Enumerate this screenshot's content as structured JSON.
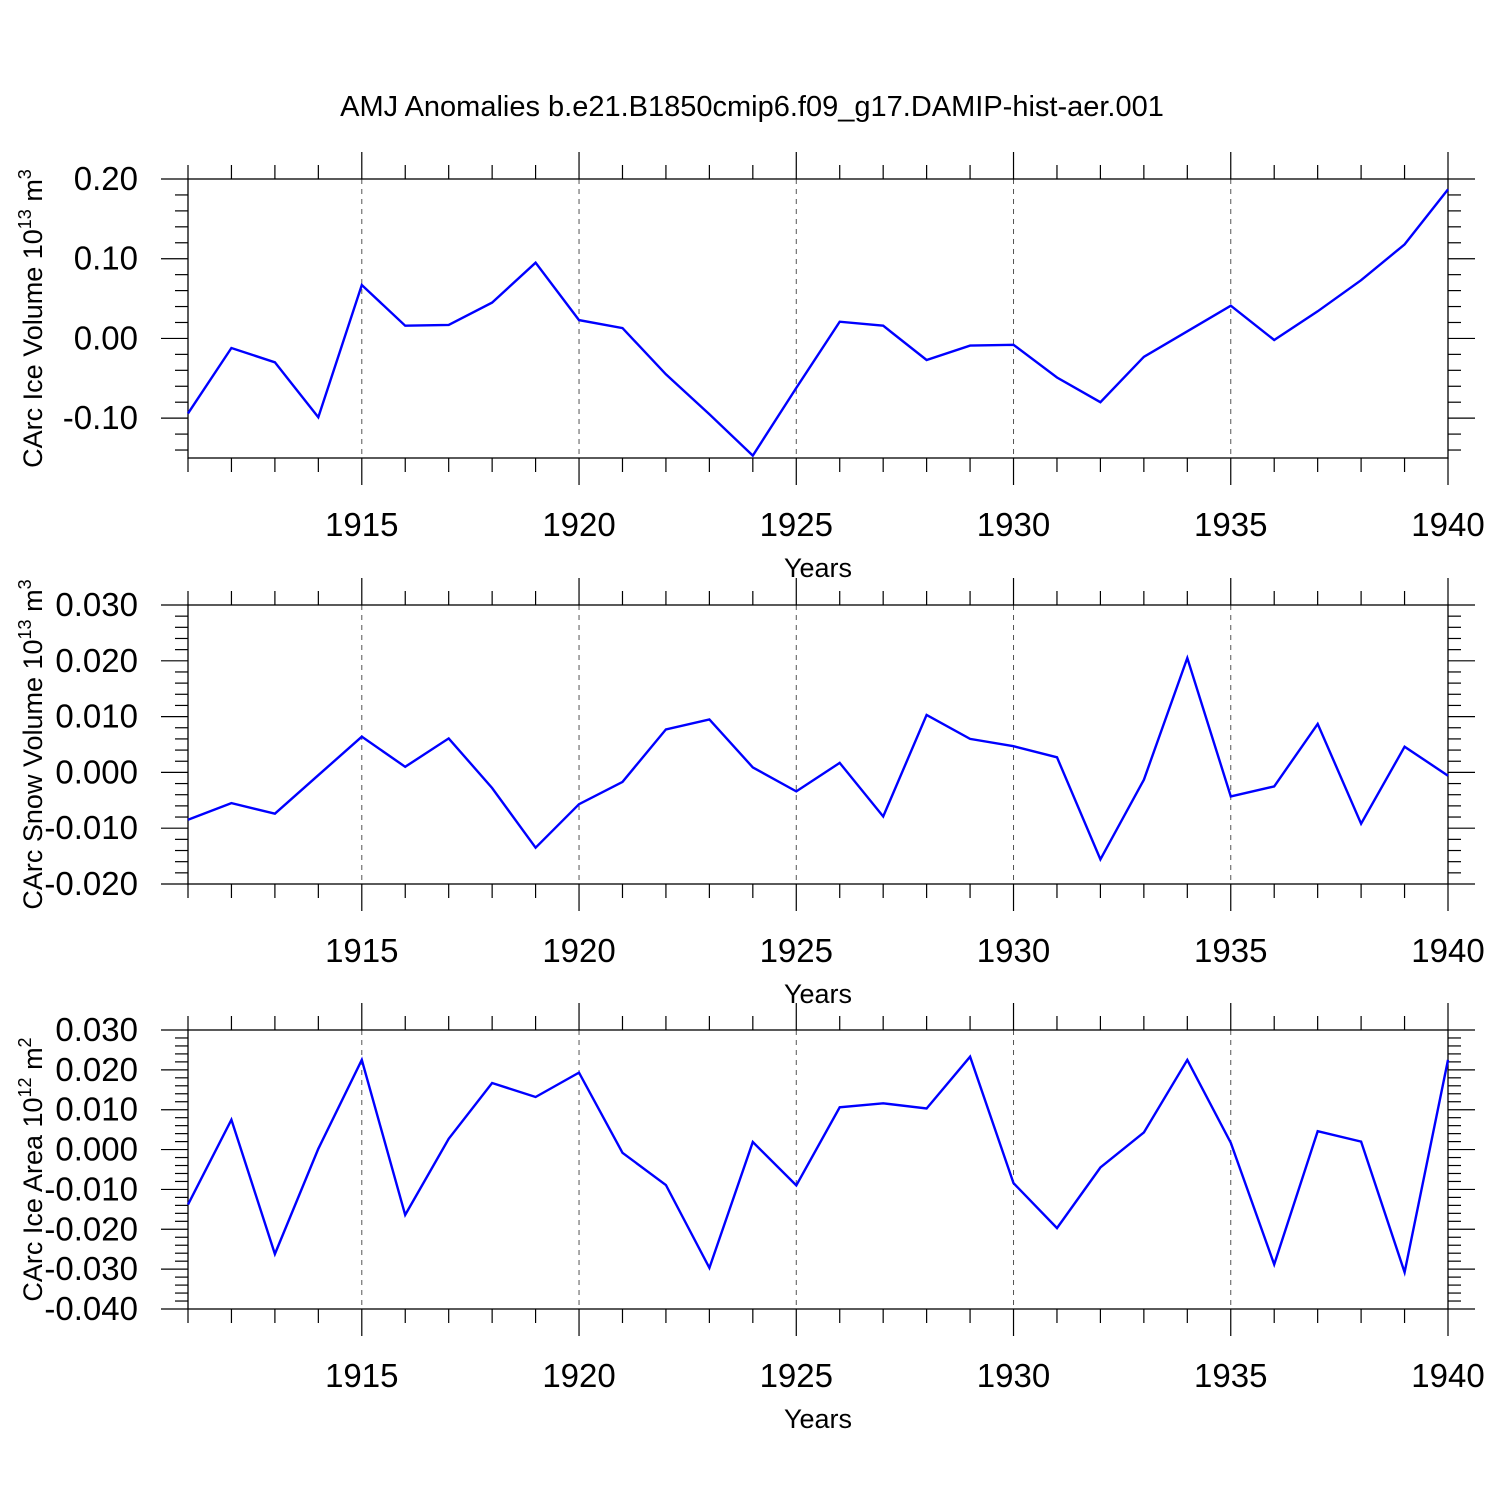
{
  "title": "AMJ Anomalies b.e21.B1850cmip6.f09_g17.DAMIP-hist-aer.001",
  "colors": {
    "line": "#0000ff",
    "axis": "#000000",
    "grid": "#555555"
  },
  "chart_data": [
    {
      "type": "line",
      "ylabel": {
        "main": "CArc Ice Volume 10",
        "exp": "13",
        "unit": " m",
        "unit_exp": "3"
      },
      "xlabel": "Years",
      "xlim": [
        1911,
        1940
      ],
      "ylim": [
        -0.15,
        0.2
      ],
      "xticks": [
        "1915",
        "1920",
        "1925",
        "1930",
        "1935",
        "1940"
      ],
      "yticks": [
        "0.20",
        "0.10",
        "0.00",
        "-0.10"
      ],
      "grid": "dashed vertical at major x ticks",
      "x": [
        1911,
        1912,
        1913,
        1914,
        1915,
        1916,
        1917,
        1918,
        1919,
        1920,
        1921,
        1922,
        1923,
        1924,
        1925,
        1926,
        1927,
        1928,
        1929,
        1930,
        1931,
        1932,
        1933,
        1934,
        1935,
        1936,
        1937,
        1938,
        1939,
        1940
      ],
      "values": [
        -0.094,
        -0.012,
        -0.03,
        -0.099,
        0.067,
        0.016,
        0.017,
        0.045,
        0.095,
        0.023,
        0.013,
        -0.045,
        -0.095,
        -0.147,
        -0.062,
        0.021,
        0.016,
        -0.027,
        -0.009,
        -0.008,
        -0.049,
        -0.08,
        -0.023,
        0.009,
        0.041,
        -0.002,
        0.034,
        0.073,
        0.118,
        0.187
      ]
    },
    {
      "type": "line",
      "ylabel": {
        "main": "CArc Snow Volume 10",
        "exp": "13",
        "unit": " m",
        "unit_exp": "3"
      },
      "xlabel": "Years",
      "xlim": [
        1911,
        1940
      ],
      "ylim": [
        -0.02,
        0.03
      ],
      "xticks": [
        "1915",
        "1920",
        "1925",
        "1930",
        "1935",
        "1940"
      ],
      "yticks": [
        "0.030",
        "0.020",
        "0.010",
        "0.000",
        "-0.010",
        "-0.020"
      ],
      "grid": "dashed vertical at major x ticks",
      "x": [
        1911,
        1912,
        1913,
        1914,
        1915,
        1916,
        1917,
        1918,
        1919,
        1920,
        1921,
        1922,
        1923,
        1924,
        1925,
        1926,
        1927,
        1928,
        1929,
        1930,
        1931,
        1932,
        1933,
        1934,
        1935,
        1936,
        1937,
        1938,
        1939,
        1940
      ],
      "values": [
        -0.0085,
        -0.0055,
        -0.0074,
        -0.0005,
        0.0064,
        0.001,
        0.0061,
        -0.0028,
        -0.0135,
        -0.0057,
        -0.0017,
        0.0077,
        0.0095,
        0.0009,
        -0.0034,
        0.0017,
        -0.0079,
        0.0103,
        0.006,
        0.0047,
        0.0027,
        -0.0156,
        -0.0013,
        0.0205,
        -0.0043,
        -0.0025,
        0.0087,
        -0.0092,
        0.0046,
        -0.0006
      ]
    },
    {
      "type": "line",
      "ylabel": {
        "main": "CArc Ice Area 10",
        "exp": "12",
        "unit": " m",
        "unit_exp": "2"
      },
      "xlabel": "Years",
      "xlim": [
        1911,
        1940
      ],
      "ylim": [
        -0.04,
        0.03
      ],
      "xticks": [
        "1915",
        "1920",
        "1925",
        "1930",
        "1935",
        "1940"
      ],
      "yticks": [
        "0.030",
        "0.020",
        "0.010",
        "0.000",
        "-0.010",
        "-0.020",
        "-0.030",
        "-0.040"
      ],
      "grid": "dashed vertical at major x ticks",
      "x": [
        1911,
        1912,
        1913,
        1914,
        1915,
        1916,
        1917,
        1918,
        1919,
        1920,
        1921,
        1922,
        1923,
        1924,
        1925,
        1926,
        1927,
        1928,
        1929,
        1930,
        1931,
        1932,
        1933,
        1934,
        1935,
        1936,
        1937,
        1938,
        1939,
        1940
      ],
      "values": [
        -0.0138,
        0.0075,
        -0.0262,
        0.0002,
        0.0225,
        -0.0164,
        0.0027,
        0.0167,
        0.0132,
        0.0193,
        -0.0008,
        -0.0089,
        -0.0297,
        0.0019,
        -0.009,
        0.0106,
        0.0116,
        0.0103,
        0.0233,
        -0.0084,
        -0.0197,
        -0.0045,
        0.0043,
        0.0225,
        0.0017,
        -0.0288,
        0.0046,
        0.002,
        -0.0308,
        0.0225
      ]
    }
  ]
}
